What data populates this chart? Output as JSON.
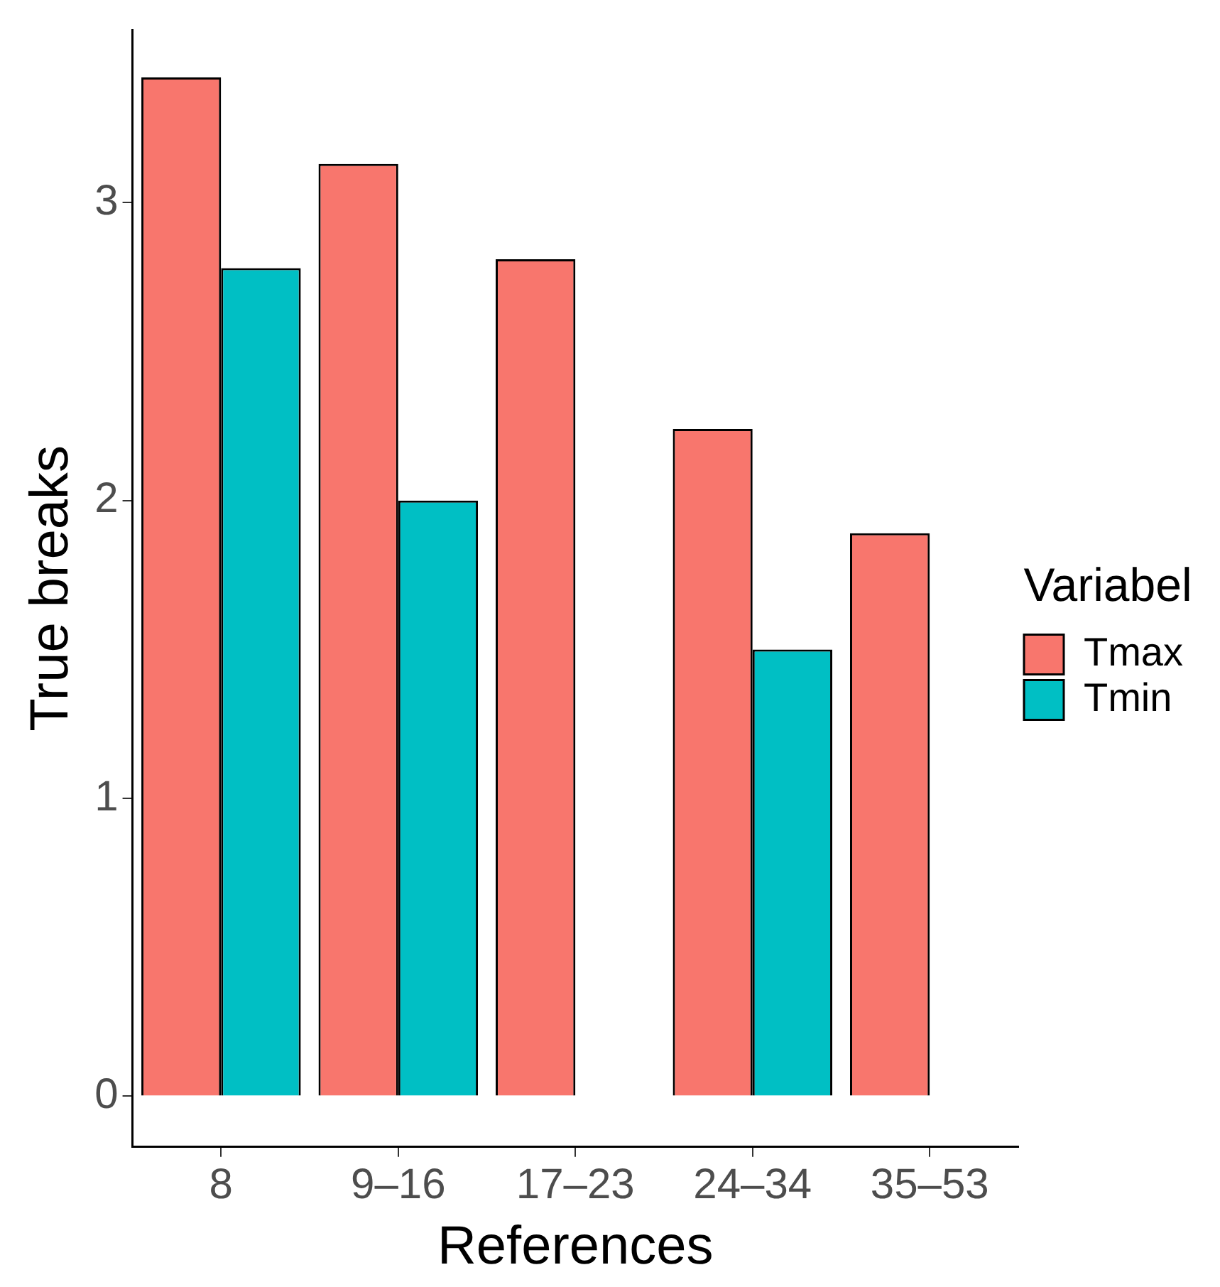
{
  "chart_data": {
    "type": "bar",
    "xlabel": "References",
    "ylabel": "True breaks",
    "legend_title": "Variabel",
    "categories": [
      "8",
      "9–16",
      "17–23",
      "24–34",
      "35–53"
    ],
    "series": [
      {
        "name": "Tmax",
        "color": "#f8766d",
        "values": [
          3.42,
          3.13,
          2.81,
          2.24,
          1.89
        ]
      },
      {
        "name": "Tmin",
        "color": "#00bfc4",
        "values": [
          2.78,
          2.0,
          0,
          1.5,
          null
        ]
      }
    ],
    "ylim": [
      -0.17,
      3.58
    ],
    "yticks": [
      0,
      1,
      2,
      3
    ],
    "grid": false,
    "legend": "right"
  }
}
